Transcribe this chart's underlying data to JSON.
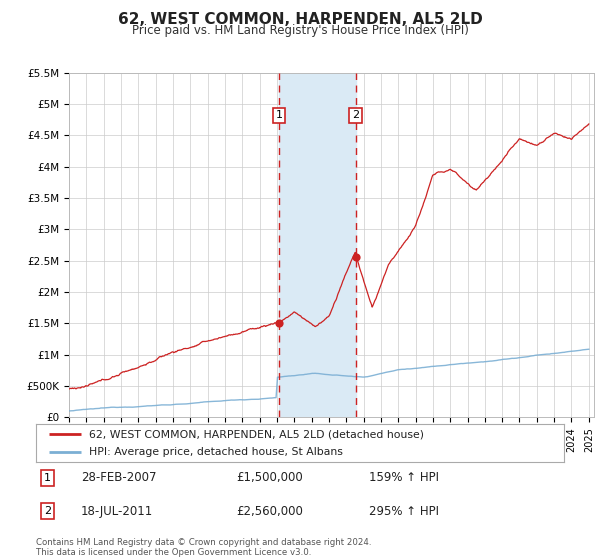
{
  "title": "62, WEST COMMON, HARPENDEN, AL5 2LD",
  "subtitle": "Price paid vs. HM Land Registry's House Price Index (HPI)",
  "ylabel_ticks": [
    "£0",
    "£500K",
    "£1M",
    "£1.5M",
    "£2M",
    "£2.5M",
    "£3M",
    "£3.5M",
    "£4M",
    "£4.5M",
    "£5M",
    "£5.5M"
  ],
  "ytick_vals": [
    0,
    500000,
    1000000,
    1500000,
    2000000,
    2500000,
    3000000,
    3500000,
    4000000,
    4500000,
    5000000,
    5500000
  ],
  "ylim": [
    0,
    5500000
  ],
  "xlim_start": 1995.0,
  "xlim_end": 2025.3,
  "hpi_color": "#7bafd4",
  "price_color": "#cc2222",
  "marker1_date": 2007.12,
  "marker1_price": 1500000,
  "marker1_label": "1",
  "marker1_date_str": "28-FEB-2007",
  "marker1_price_str": "£1,500,000",
  "marker1_hpi_str": "159% ↑ HPI",
  "marker2_date": 2011.54,
  "marker2_price": 2560000,
  "marker2_label": "2",
  "marker2_date_str": "18-JUL-2011",
  "marker2_price_str": "£2,560,000",
  "marker2_hpi_str": "295% ↑ HPI",
  "legend_line1": "62, WEST COMMON, HARPENDEN, AL5 2LD (detached house)",
  "legend_line2": "HPI: Average price, detached house, St Albans",
  "footer": "Contains HM Land Registry data © Crown copyright and database right 2024.\nThis data is licensed under the Open Government Licence v3.0.",
  "background_color": "#ffffff",
  "plot_bg_color": "#ffffff",
  "grid_color": "#cccccc",
  "shaded_region_color": "#daeaf5"
}
